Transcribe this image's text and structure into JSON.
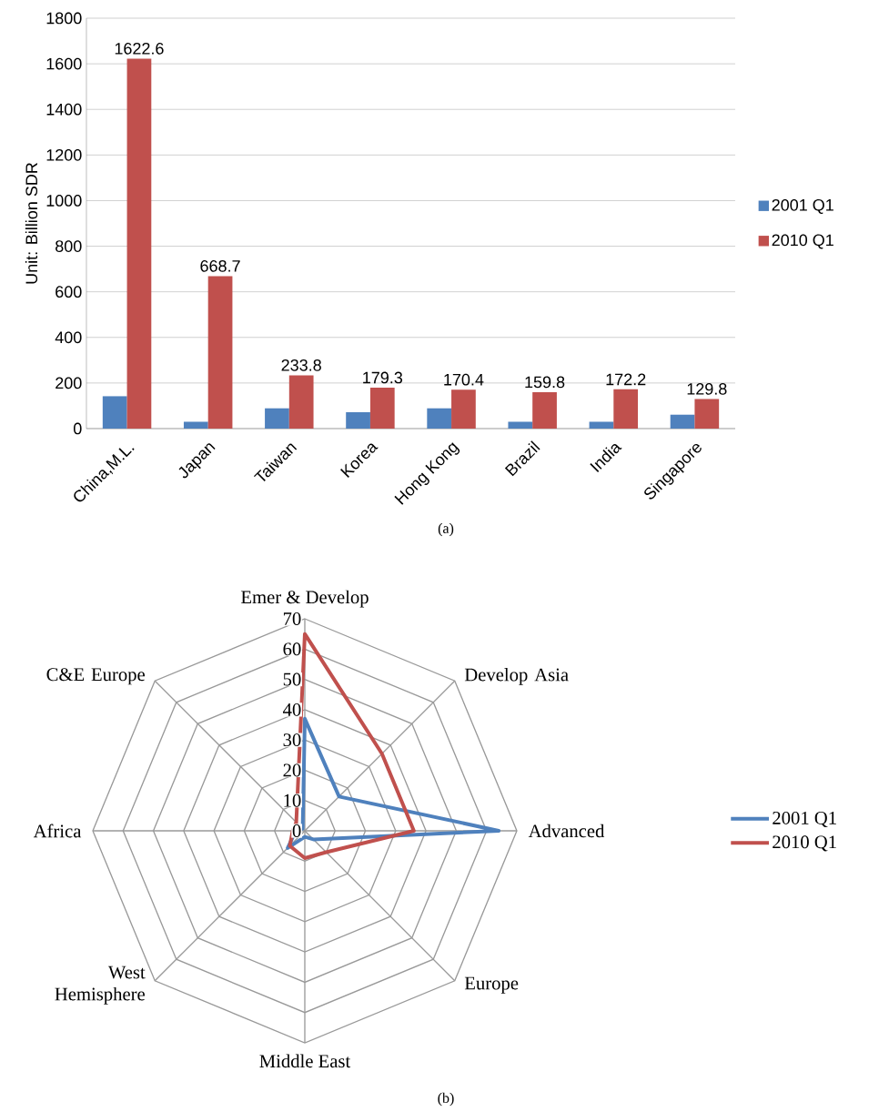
{
  "chart_data": [
    {
      "type": "bar",
      "ylabel": "Unit: Billion SDR",
      "categories": [
        "China,M.L.",
        "Japan",
        "Taiwan",
        "Korea",
        "Hong Kong",
        "Brazil",
        "India",
        "Singapore"
      ],
      "series": [
        {
          "name": "2001 Q1",
          "color": "#4f81bd",
          "values": [
            142,
            30,
            89,
            72,
            89,
            30,
            30,
            61
          ]
        },
        {
          "name": "2010 Q1",
          "color": "#c0504d",
          "values": [
            1622.6,
            668.7,
            233.8,
            179.3,
            170.4,
            159.8,
            172.2,
            129.8
          ],
          "value_labels": [
            "1622.6",
            "668.7",
            "233.8",
            "179.3",
            "170.4",
            "159.8",
            "172.2",
            "129.8"
          ]
        }
      ],
      "ylim": [
        0,
        1800
      ],
      "yticks": [
        0,
        200,
        400,
        600,
        800,
        1000,
        1200,
        1400,
        1600,
        1800
      ],
      "grid": "y",
      "legend": "right",
      "annotations": [
        "(a)"
      ]
    },
    {
      "type": "radar",
      "categories": [
        "Emer & Develop",
        "Develop Asia",
        "Advanced",
        "Europe",
        "Middle East",
        "West Hemisphere",
        "Africa",
        "C&E Europe"
      ],
      "series": [
        {
          "name": "2001 Q1",
          "color": "#4f81bd",
          "values": [
            37,
            16,
            64,
            4,
            2,
            8,
            3,
            1
          ]
        },
        {
          "name": "2010 Q1",
          "color": "#c0504d",
          "values": [
            65,
            36,
            36,
            10,
            9,
            7,
            4,
            4
          ]
        }
      ],
      "ylim": [
        0,
        70
      ],
      "yticks": [
        0,
        10,
        20,
        30,
        40,
        50,
        60,
        70
      ],
      "grid": true,
      "legend": "right",
      "annotations": [
        "(b)"
      ]
    }
  ]
}
